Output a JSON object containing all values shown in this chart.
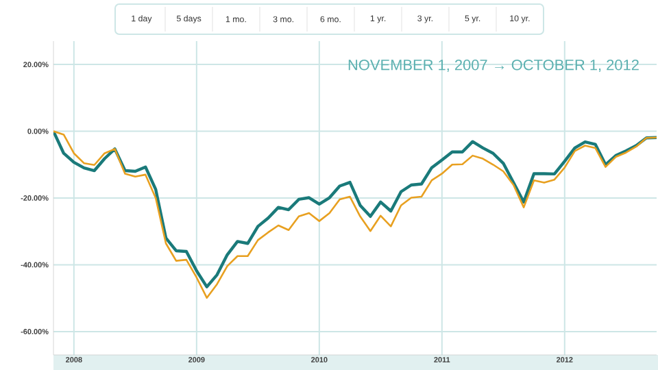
{
  "chart_data": {
    "type": "line",
    "annotations": [
      "1 day",
      "5 days",
      "1 mo.",
      "3 mo.",
      "6 mo.",
      "1 yr.",
      "3 yr.",
      "5 yr.",
      "10 yr.",
      "NOVEMBER 1, 2007 → OCTOBER 1, 2012"
    ],
    "x": [
      "2007-11",
      "2007-12",
      "2008-01",
      "2008-02",
      "2008-03",
      "2008-04",
      "2008-05",
      "2008-06",
      "2008-07",
      "2008-08",
      "2008-09",
      "2008-10",
      "2008-11",
      "2008-12",
      "2009-01",
      "2009-02",
      "2009-03",
      "2009-04",
      "2009-05",
      "2009-06",
      "2009-07",
      "2009-08",
      "2009-09",
      "2009-10",
      "2009-11",
      "2009-12",
      "2010-01",
      "2010-02",
      "2010-03",
      "2010-04",
      "2010-05",
      "2010-06",
      "2010-07",
      "2010-08",
      "2010-09",
      "2010-10",
      "2010-11",
      "2010-12",
      "2011-01",
      "2011-02",
      "2011-03",
      "2011-04",
      "2011-05",
      "2011-06",
      "2011-07",
      "2011-08",
      "2011-09",
      "2011-10",
      "2011-11",
      "2011-12",
      "2012-01",
      "2012-02",
      "2012-03",
      "2012-04",
      "2012-05",
      "2012-06",
      "2012-07",
      "2012-08",
      "2012-09",
      "2012-10"
    ],
    "series": [
      {
        "color": "#1a7a7a",
        "values": [
          0,
          -6.6,
          -9.3,
          -11,
          -11.8,
          -8.2,
          -5.3,
          -11.8,
          -12,
          -10.7,
          -17.4,
          -32,
          -35.8,
          -36,
          -41.8,
          -46.6,
          -43,
          -37,
          -33,
          -33.6,
          -28.5,
          -26,
          -22.8,
          -23.5,
          -20.4,
          -19.9,
          -21.8,
          -19.9,
          -16.4,
          -15.3,
          -22.2,
          -25.5,
          -21.2,
          -23.9,
          -18.1,
          -16.1,
          -15.8,
          -10.9,
          -8.6,
          -6.2,
          -6.2,
          -3.1,
          -5,
          -6.6,
          -9.6,
          -15.4,
          -21.2,
          -12.7,
          -12.7,
          -12.8,
          -9,
          -5,
          -3.2,
          -3.9,
          -10,
          -7.3,
          -5.9,
          -4.3,
          -2,
          -1.9
        ]
      },
      {
        "color": "#e8a020",
        "values": [
          0,
          -1,
          -6.6,
          -9.6,
          -10.1,
          -6.6,
          -5.3,
          -12.7,
          -13.6,
          -13,
          -20,
          -33.6,
          -38.8,
          -38.5,
          -43.8,
          -49.9,
          -45.8,
          -40.4,
          -37.4,
          -37.4,
          -32.6,
          -30.3,
          -28.2,
          -29.6,
          -25.5,
          -24.5,
          -26.9,
          -24.5,
          -20.4,
          -19.6,
          -25.5,
          -29.9,
          -25.3,
          -28.5,
          -22.2,
          -19.9,
          -19.6,
          -14.7,
          -12.7,
          -10,
          -9.9,
          -7.3,
          -8.2,
          -10,
          -12,
          -16.1,
          -22.8,
          -14.7,
          -15.4,
          -14.5,
          -10.9,
          -5.9,
          -4.3,
          -5,
          -10.7,
          -7.7,
          -6.4,
          -4.6,
          -2,
          -1.9
        ]
      }
    ],
    "xlim": [
      "2007-11",
      "2012-10"
    ],
    "xticks": [
      {
        "value": "2008-01",
        "label": "2008"
      },
      {
        "value": "2009-01",
        "label": "2009"
      },
      {
        "value": "2010-01",
        "label": "2010"
      },
      {
        "value": "2011-01",
        "label": "2011"
      },
      {
        "value": "2012-01",
        "label": "2012"
      }
    ],
    "ylim": [
      -67,
      27
    ],
    "yticks": [
      {
        "value": -60,
        "label": "-60.00%"
      },
      {
        "value": -40,
        "label": "-40.00%"
      },
      {
        "value": -20,
        "label": "-20.00%"
      },
      {
        "value": 0,
        "label": "0.00%"
      },
      {
        "value": 20,
        "label": "20.00%"
      }
    ],
    "grid": true,
    "line_style": "solid",
    "marker": "none"
  }
}
